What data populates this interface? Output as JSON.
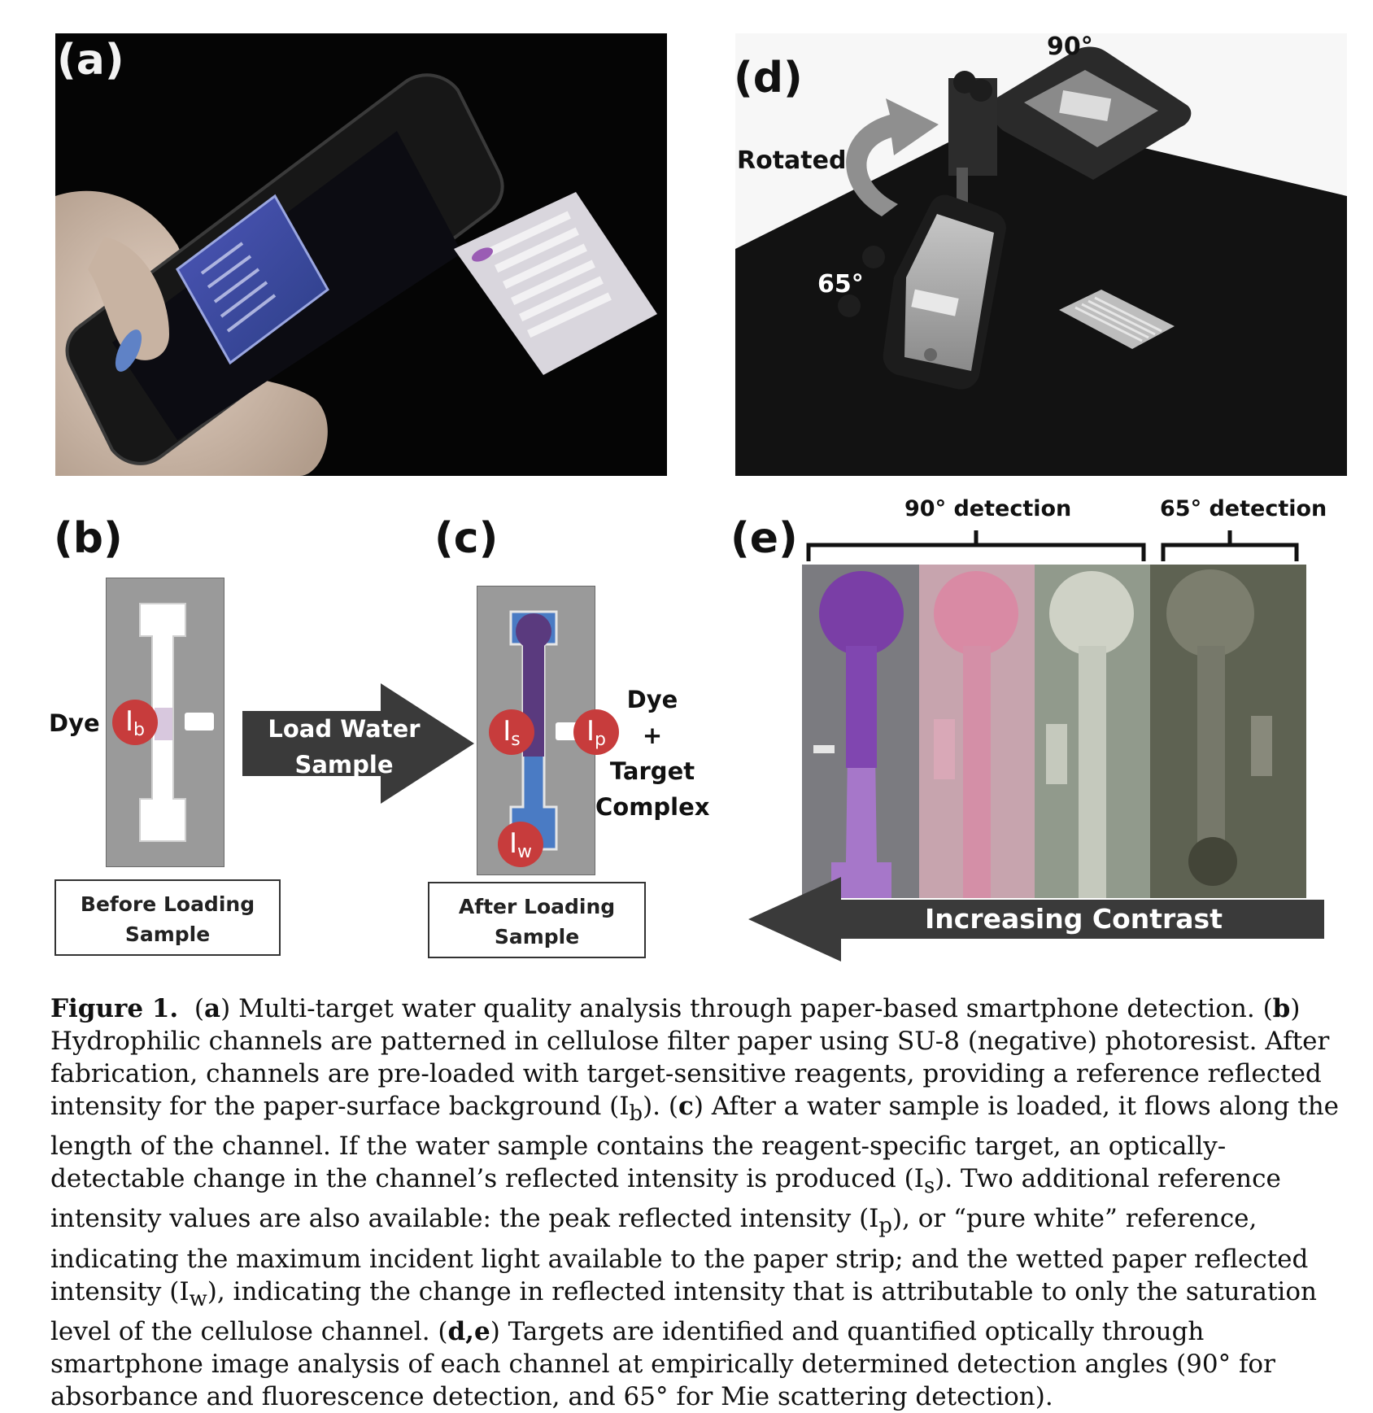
{
  "panels": {
    "a": {
      "label": "(a)"
    },
    "d": {
      "label": "(d)",
      "angle_top": "90°",
      "rotated": "Rotated",
      "angle_side": "65°"
    },
    "b": {
      "label": "(b)",
      "dye": "Dye",
      "marker": "I",
      "marker_sub": "b",
      "box_line1": "Before Loading",
      "box_line2": "Sample"
    },
    "arrow": {
      "line1": "Load Water",
      "line2": "Sample"
    },
    "c": {
      "label": "(c)",
      "marker_s": "I",
      "marker_s_sub": "s",
      "marker_p": "I",
      "marker_p_sub": "p",
      "marker_w": "I",
      "marker_w_sub": "w",
      "side_line1": "Dye",
      "side_line2": "+",
      "side_line3": "Target",
      "side_line4": "Complex",
      "box_line1": "After Loading",
      "box_line2": "Sample"
    },
    "e": {
      "label": "(e)",
      "bracket_90": "90° detection",
      "bracket_65": "65° detection",
      "contrast": "Increasing Contrast"
    }
  },
  "caption": {
    "fig": "Figure 1.",
    "p_a": "a",
    "t_a": ") Multi-target water quality analysis through paper-based smartphone detection. (",
    "p_b": "b",
    "t_b1": ") Hydrophilic channels are patterned in cellulose filter paper using SU-8 (negative) photoresist. After fabrication, channels are pre-loaded with target-sensitive reagents, providing a reference reflected intensity for the paper-surface background (I",
    "s_b": "b",
    "t_b2": "). (",
    "p_c": "c",
    "t_c1": ") After a water sample is loaded, it flows along the length of the channel. If the water sample contains the reagent-specific target, an optically-detectable change in the channel’s reflected intensity is produced (I",
    "s_s": "s",
    "t_c2": "). Two additional reference intensity values are also available: the peak reflected intensity (I",
    "s_p": "p",
    "t_c3": "), or “pure white” reference, indicating the maximum incident light available to the paper strip; and the wetted paper reflected intensity (I",
    "s_w": "w",
    "t_c4": "), indicating the change in reflected intensity that is attributable to only the saturation level of the cellulose channel. (",
    "p_de": "d,e",
    "t_de": ") Targets are identified and quantified optically through smartphone image analysis of each channel at empirically determined detection angles (90° for absorbance and fluorescence detection, and 65° for Mie scattering detection)."
  }
}
